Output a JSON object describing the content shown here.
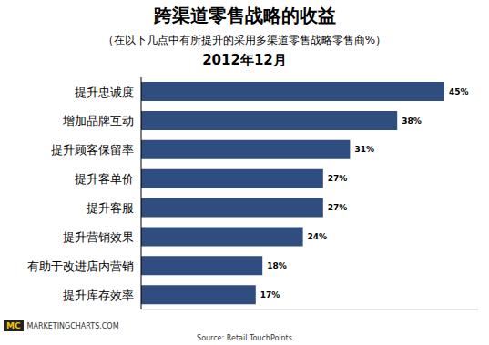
{
  "chart_data": {
    "type": "bar",
    "orientation": "horizontal",
    "title": "跨渠道零售战略的收益",
    "subtitle": "（在以下几点中有所提升的采用多渠道零售战略零售商%）",
    "date": "2012年12月",
    "categories": [
      "提升忠诚度",
      "增加品牌互动",
      "提升顾客保留率",
      "提升客单价",
      "提升客服",
      "提升营销效果",
      "有助于改进店内营销",
      "提升库存效率"
    ],
    "values": [
      45,
      38,
      31,
      27,
      27,
      24,
      18,
      17
    ],
    "value_labels": [
      "45%",
      "38%",
      "31%",
      "27%",
      "27%",
      "24%",
      "18%",
      "17%"
    ],
    "data_labels": true,
    "color": "#2f4d7e",
    "xlim": [
      0,
      50
    ],
    "tick_labels": "y",
    "grid": false,
    "logo": "MC",
    "brand": "MARKETINGCHARTS.COM",
    "source": "Source: Retail TouchPoints"
  }
}
